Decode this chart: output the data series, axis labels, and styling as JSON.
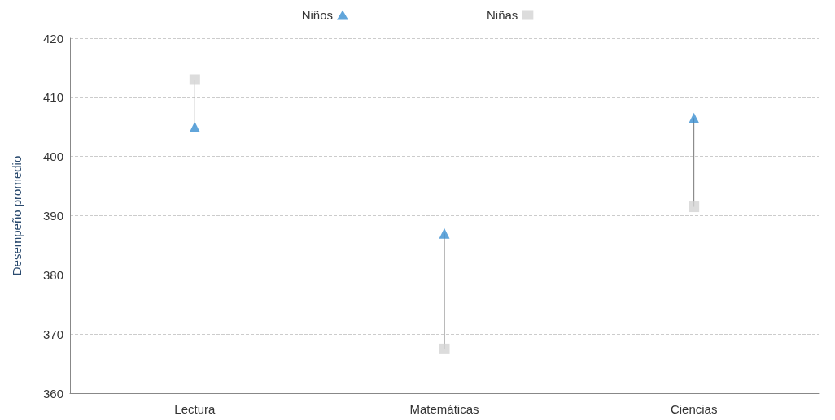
{
  "chart_data": {
    "type": "scatter",
    "ylabel": "Desempeño promedio",
    "categories": [
      "Lectura",
      "Matemáticas",
      "Ciencias"
    ],
    "series": [
      {
        "name": "Niños",
        "color": "#3a8fd1",
        "marker": "triangle",
        "values": [
          405,
          387,
          406.5
        ]
      },
      {
        "name": "Niñas",
        "color": "#d3d3d3",
        "marker": "square",
        "values": [
          413,
          367.5,
          391.5
        ]
      }
    ],
    "ylim": [
      360,
      420
    ],
    "yticks": [
      360,
      370,
      380,
      390,
      400,
      410,
      420
    ],
    "grid": "y",
    "legend": "top"
  }
}
